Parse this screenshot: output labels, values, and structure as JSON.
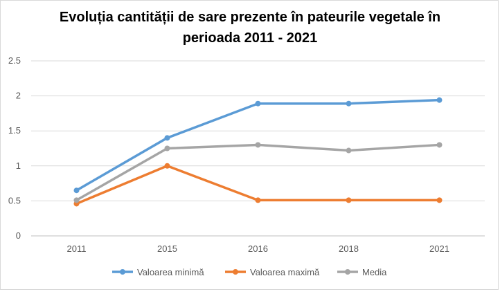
{
  "chart_data": {
    "type": "line",
    "title_line1": "Evoluția cantității de sare prezente în pateurile vegetale în",
    "title_line2": "perioada 2011 - 2021",
    "categories": [
      "2011",
      "2015",
      "2016",
      "2018",
      "2021"
    ],
    "y_ticks": [
      "0",
      "0.5",
      "1",
      "1.5",
      "2",
      "2.5"
    ],
    "ylim": [
      0,
      2.5
    ],
    "grid": true,
    "legend_position": "bottom",
    "series": [
      {
        "name": "Valoarea minimă",
        "color": "#5b9bd5",
        "values": [
          0.65,
          1.4,
          1.89,
          1.89,
          1.94
        ]
      },
      {
        "name": "Valoarea maximă",
        "color": "#ed7d31",
        "values": [
          0.46,
          1.0,
          0.51,
          0.51,
          0.51
        ]
      },
      {
        "name": "Media",
        "color": "#a5a5a5",
        "values": [
          0.51,
          1.25,
          1.3,
          1.22,
          1.3
        ]
      }
    ]
  }
}
